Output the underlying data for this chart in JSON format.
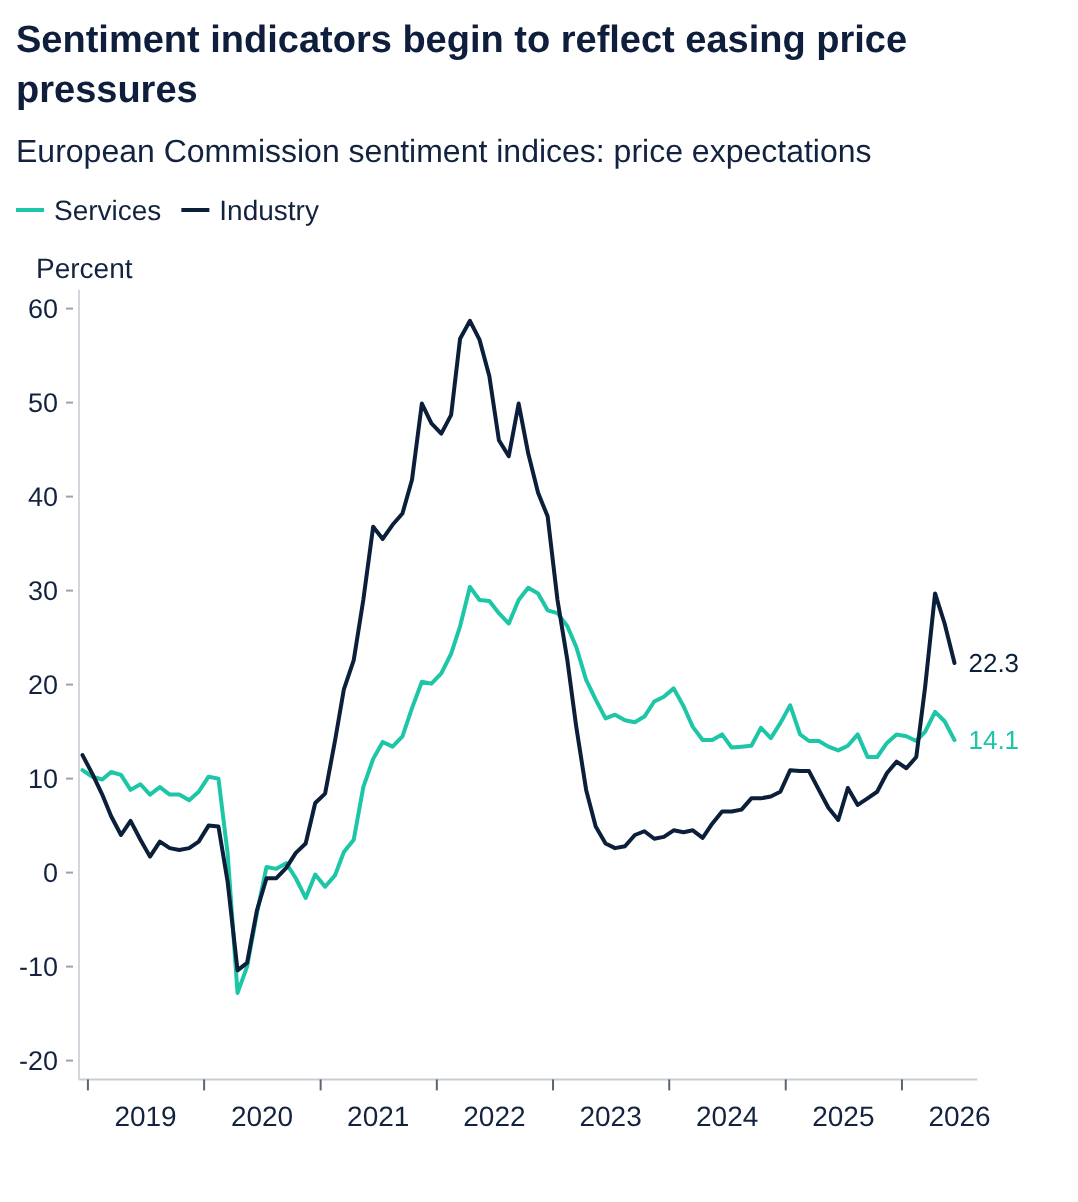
{
  "chart_data": {
    "type": "line",
    "title": "Sentiment indicators begin to reflect easing price pressures",
    "subtitle": "European Commission sentiment indices: price expectations",
    "ylabel": "Percent",
    "legend": "top left",
    "x": [
      "2018-12-15",
      "2019-01-15",
      "2019-02-15",
      "2019-03-15",
      "2019-04-15",
      "2019-05-15",
      "2019-06-15",
      "2019-07-15",
      "2019-08-15",
      "2019-09-15",
      "2019-10-15",
      "2019-11-15",
      "2019-12-15",
      "2020-01-15",
      "2020-02-15",
      "2020-03-15",
      "2020-04-15",
      "2020-05-15",
      "2020-06-15",
      "2020-07-15",
      "2020-08-15",
      "2020-09-15",
      "2020-10-15",
      "2020-11-15",
      "2020-12-15",
      "2021-01-15",
      "2021-02-15",
      "2021-03-15",
      "2021-04-15",
      "2021-05-15",
      "2021-06-15",
      "2021-07-15",
      "2021-08-15",
      "2021-09-15",
      "2021-10-15",
      "2021-11-15",
      "2021-12-15",
      "2022-01-15",
      "2022-02-15",
      "2022-03-15",
      "2022-04-15",
      "2022-05-15",
      "2022-06-15",
      "2022-07-15",
      "2022-08-15",
      "2022-09-15",
      "2022-10-15",
      "2022-11-15",
      "2022-12-15",
      "2023-01-15",
      "2023-02-15",
      "2023-03-15",
      "2023-04-15",
      "2023-05-15",
      "2023-06-15",
      "2023-07-15",
      "2023-08-15",
      "2023-09-15",
      "2023-10-15",
      "2023-11-15",
      "2023-12-15",
      "2024-01-15",
      "2024-02-15",
      "2024-03-15",
      "2024-04-15",
      "2024-05-15",
      "2024-06-15",
      "2024-07-15",
      "2024-08-15",
      "2024-09-15",
      "2024-10-15",
      "2024-11-15",
      "2024-12-15",
      "2025-01-15",
      "2025-02-15",
      "2025-03-15",
      "2025-04-15",
      "2025-05-15",
      "2025-06-15",
      "2025-07-15",
      "2025-08-15",
      "2025-09-15",
      "2025-10-15",
      "2025-11-15",
      "2025-12-15",
      "2026-01-15",
      "2026-02-15",
      "2026-03-15",
      "2026-04-15",
      "2026-05-15",
      "2026-06-15"
    ],
    "xlim": [
      "2018-12-04",
      "2026-08-26"
    ],
    "xticks": [
      {
        "value": "2019-01-01",
        "label": null
      },
      {
        "value": "2020-01-01",
        "label": null
      },
      {
        "value": "2021-01-01",
        "label": null
      },
      {
        "value": "2022-01-01",
        "label": null
      },
      {
        "value": "2023-01-01",
        "label": null
      },
      {
        "value": "2024-01-01",
        "label": null
      },
      {
        "value": "2025-01-01",
        "label": null
      },
      {
        "value": "2026-01-01",
        "label": null
      },
      {
        "value": "2019-07-01",
        "label": "2019"
      },
      {
        "value": "2020-07-01",
        "label": "2020"
      },
      {
        "value": "2021-07-01",
        "label": "2021"
      },
      {
        "value": "2022-07-01",
        "label": "2022"
      },
      {
        "value": "2023-07-01",
        "label": "2023"
      },
      {
        "value": "2024-07-01",
        "label": "2024"
      },
      {
        "value": "2025-07-01",
        "label": "2025"
      },
      {
        "value": "2026-07-01",
        "label": "2026"
      }
    ],
    "ylim": [
      -22,
      62
    ],
    "yticks": [
      -20,
      -10,
      0,
      10,
      20,
      30,
      40,
      50,
      60
    ],
    "series": [
      {
        "name": "Services",
        "color": "#1cc6a6",
        "values": [
          10.9,
          10.2,
          9.9,
          10.7,
          10.4,
          8.8,
          9.4,
          8.3,
          9.1,
          8.3,
          8.3,
          7.7,
          8.6,
          10.2,
          10.0,
          2.0,
          -12.8,
          -10.0,
          -4.3,
          0.6,
          0.4,
          1.0,
          -0.6,
          -2.7,
          -0.2,
          -1.5,
          -0.3,
          2.2,
          3.5,
          9.1,
          12.1,
          13.9,
          13.4,
          14.5,
          17.5,
          20.3,
          20.1,
          21.2,
          23.3,
          26.2,
          30.4,
          29.0,
          28.9,
          27.6,
          26.5,
          29.0,
          30.3,
          29.7,
          27.9,
          27.6,
          26.2,
          24.0,
          20.5,
          18.4,
          16.4,
          16.8,
          16.2,
          16.0,
          16.6,
          18.2,
          18.7,
          19.6,
          17.7,
          15.5,
          14.1,
          14.1,
          14.7,
          13.3,
          13.4,
          13.5,
          15.4,
          14.3,
          15.9,
          17.8,
          14.7,
          14.0,
          14.0,
          13.4,
          13.0,
          13.5,
          14.7,
          12.3,
          12.3,
          13.8,
          14.7,
          14.5,
          14.0,
          15.0,
          17.1,
          16.1,
          14.1
        ],
        "value_labels": [
          null,
          null,
          null,
          null,
          null,
          null,
          null,
          null,
          null,
          null,
          null,
          null,
          null,
          null,
          null,
          null,
          null,
          null,
          null,
          null,
          null,
          null,
          null,
          null,
          null,
          null,
          null,
          null,
          null,
          null,
          null,
          null,
          null,
          null,
          null,
          null,
          null,
          null,
          null,
          null,
          null,
          null,
          null,
          null,
          null,
          null,
          null,
          null,
          null,
          null,
          null,
          null,
          null,
          null,
          null,
          null,
          null,
          null,
          null,
          null,
          null,
          null,
          null,
          null,
          null,
          null,
          null,
          null,
          null,
          null,
          null,
          null,
          null,
          null,
          null,
          null,
          null,
          null,
          null,
          null,
          null,
          null,
          null,
          null,
          null,
          null,
          null,
          null,
          null,
          null,
          "14.1"
        ]
      },
      {
        "name": "Industry",
        "color": "#0b1f3a",
        "values": [
          12.5,
          10.5,
          8.3,
          6.0,
          4.0,
          5.5,
          3.5,
          1.7,
          3.3,
          2.6,
          2.4,
          2.6,
          3.3,
          5.0,
          4.9,
          -1.0,
          -10.4,
          -9.6,
          -4.0,
          -0.6,
          -0.6,
          0.5,
          2.1,
          3.1,
          7.4,
          8.4,
          14.0,
          19.5,
          22.6,
          29.0,
          36.8,
          35.5,
          37.0,
          38.2,
          41.8,
          49.9,
          47.8,
          46.7,
          48.7,
          56.8,
          58.7,
          56.7,
          52.8,
          46.0,
          44.3,
          49.9,
          44.6,
          40.4,
          37.9,
          29.0,
          22.6,
          15.5,
          8.8,
          4.9,
          3.1,
          2.6,
          2.8,
          4.0,
          4.4,
          3.6,
          3.8,
          4.5,
          4.3,
          4.5,
          3.7,
          5.2,
          6.5,
          6.5,
          6.7,
          7.9,
          7.9,
          8.1,
          8.6,
          10.9,
          10.8,
          10.8,
          8.8,
          6.9,
          5.6,
          9.0,
          7.2,
          7.9,
          8.6,
          10.6,
          11.8,
          11.1,
          12.3,
          19.8,
          29.7,
          26.5,
          22.3
        ],
        "value_labels": [
          null,
          null,
          null,
          null,
          null,
          null,
          null,
          null,
          null,
          null,
          null,
          null,
          null,
          null,
          null,
          null,
          null,
          null,
          null,
          null,
          null,
          null,
          null,
          null,
          null,
          null,
          null,
          null,
          null,
          null,
          null,
          null,
          null,
          null,
          null,
          null,
          null,
          null,
          null,
          null,
          null,
          null,
          null,
          null,
          null,
          null,
          null,
          null,
          null,
          null,
          null,
          null,
          null,
          null,
          null,
          null,
          null,
          null,
          null,
          null,
          null,
          null,
          null,
          null,
          null,
          null,
          null,
          null,
          null,
          null,
          null,
          null,
          null,
          null,
          null,
          null,
          null,
          null,
          null,
          null,
          null,
          null,
          null,
          null,
          null,
          null,
          null,
          null,
          null,
          null,
          "22.3"
        ]
      }
    ]
  }
}
